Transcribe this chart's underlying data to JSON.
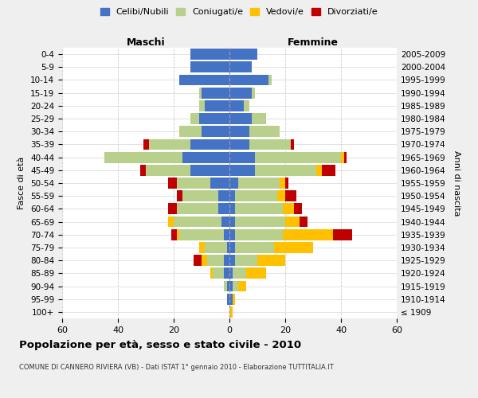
{
  "age_groups": [
    "100+",
    "95-99",
    "90-94",
    "85-89",
    "80-84",
    "75-79",
    "70-74",
    "65-69",
    "60-64",
    "55-59",
    "50-54",
    "45-49",
    "40-44",
    "35-39",
    "30-34",
    "25-29",
    "20-24",
    "15-19",
    "10-14",
    "5-9",
    "0-4"
  ],
  "birth_years": [
    "≤ 1909",
    "1910-1914",
    "1915-1919",
    "1920-1924",
    "1925-1929",
    "1930-1934",
    "1935-1939",
    "1940-1944",
    "1945-1949",
    "1950-1954",
    "1955-1959",
    "1960-1964",
    "1965-1969",
    "1970-1974",
    "1975-1979",
    "1980-1984",
    "1985-1989",
    "1990-1994",
    "1995-1999",
    "2000-2004",
    "2005-2009"
  ],
  "colors": {
    "celibe": "#4472c4",
    "coniugato": "#b8d08c",
    "vedovo": "#ffc000",
    "divorziato": "#c00000"
  },
  "maschi": {
    "celibe": [
      0,
      1,
      1,
      2,
      2,
      1,
      2,
      3,
      4,
      4,
      7,
      14,
      17,
      14,
      10,
      11,
      9,
      10,
      18,
      14,
      14
    ],
    "coniugato": [
      0,
      0,
      1,
      4,
      6,
      8,
      16,
      17,
      15,
      13,
      12,
      16,
      28,
      15,
      8,
      3,
      2,
      1,
      0,
      0,
      0
    ],
    "vedovo": [
      0,
      0,
      0,
      1,
      2,
      2,
      1,
      2,
      0,
      0,
      0,
      0,
      0,
      0,
      0,
      0,
      0,
      0,
      0,
      0,
      0
    ],
    "divorziato": [
      0,
      0,
      0,
      0,
      3,
      0,
      2,
      0,
      3,
      2,
      3,
      2,
      0,
      2,
      0,
      0,
      0,
      0,
      0,
      0,
      0
    ]
  },
  "femmine": {
    "nubile": [
      0,
      1,
      1,
      1,
      2,
      2,
      2,
      2,
      2,
      2,
      3,
      9,
      9,
      7,
      7,
      8,
      5,
      8,
      14,
      8,
      10
    ],
    "coniugata": [
      0,
      0,
      2,
      5,
      8,
      14,
      17,
      18,
      17,
      15,
      15,
      22,
      31,
      15,
      11,
      5,
      2,
      1,
      1,
      0,
      0
    ],
    "vedova": [
      1,
      1,
      3,
      7,
      10,
      14,
      18,
      5,
      4,
      3,
      2,
      2,
      1,
      0,
      0,
      0,
      0,
      0,
      0,
      0,
      0
    ],
    "divorziata": [
      0,
      0,
      0,
      0,
      0,
      0,
      7,
      3,
      3,
      4,
      1,
      5,
      1,
      1,
      0,
      0,
      0,
      0,
      0,
      0,
      0
    ]
  },
  "xlim": 60,
  "title": "Popolazione per età, sesso e stato civile - 2010",
  "subtitle": "COMUNE DI CANNERO RIVIERA (VB) - Dati ISTAT 1° gennaio 2010 - Elaborazione TUTTITALIA.IT",
  "xlabel_left": "Maschi",
  "xlabel_right": "Femmine",
  "ylabel_left": "Fasce di età",
  "ylabel_right": "Anni di nascita",
  "legend_labels": [
    "Celibi/Nubili",
    "Coniugati/e",
    "Vedovi/e",
    "Divorziati/e"
  ],
  "bg_color": "#efefef",
  "plot_bg": "#ffffff",
  "grid_color": "#cccccc"
}
